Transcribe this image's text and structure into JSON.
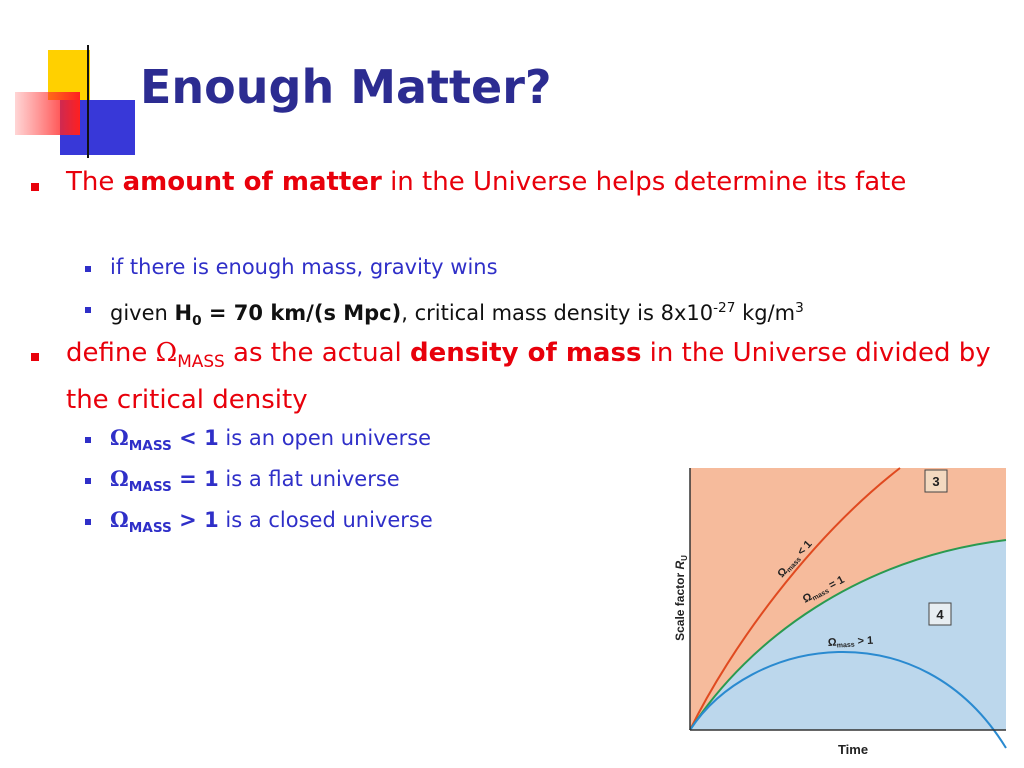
{
  "title": "Enough Matter?",
  "bullets": [
    {
      "text": [
        "The ",
        "amount of matter",
        " in the Universe helps determine its fate"
      ],
      "sub": [
        [
          "if there is enough mass, gravity wins"
        ],
        [
          "given ",
          "H",
          "0",
          " = 70 km/(s Mpc)",
          ", critical mass density is 8x10",
          "-27",
          " kg/m",
          "3"
        ]
      ]
    },
    {
      "text": [
        "define ",
        "Ω",
        "MASS",
        " as the actual ",
        "density of mass",
        " in the Universe divided by the critical density"
      ],
      "sub": [
        [
          "Ω",
          "MASS",
          " < 1",
          " is an open universe"
        ],
        [
          "Ω",
          "MASS",
          " = 1",
          " is a flat universe"
        ],
        [
          "Ω",
          "MASS",
          " > 1",
          " is a closed universe"
        ]
      ]
    }
  ],
  "figure": {
    "y_label": [
      "Scale factor ",
      "R",
      "U"
    ],
    "x_label": "Time",
    "curves": [
      [
        "Ω",
        "mass",
        " < 1"
      ],
      [
        "Ω",
        "mass",
        " = 1"
      ],
      [
        "Ω",
        "mass",
        " > 1"
      ]
    ],
    "boxes": [
      "3",
      "4"
    ]
  }
}
